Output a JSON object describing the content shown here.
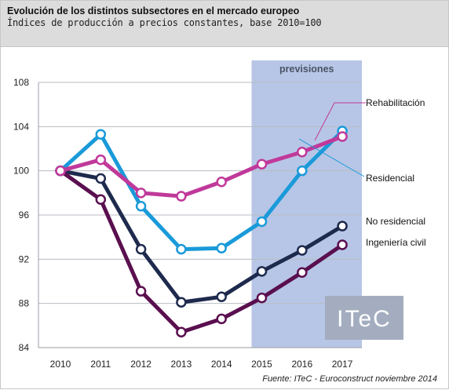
{
  "header": {
    "title": "Evolución de los distintos subsectores en el mercado europeo",
    "subtitle": "Índices de producción a precios constantes, base 2010=100"
  },
  "source": "Fuente: ITeC - Euroconstruct noviembre 2014",
  "logo_text": "ITeC",
  "forecast_label": "previsiones",
  "chart_data": {
    "type": "line",
    "categories": [
      "2010",
      "2011",
      "2012",
      "2013",
      "2014",
      "2015",
      "2016",
      "2017"
    ],
    "ylim": [
      84,
      108
    ],
    "yticks": [
      84,
      88,
      92,
      96,
      100,
      104,
      108
    ],
    "grid": "horizontal",
    "forecast_region": [
      "2015",
      "2017"
    ],
    "series": [
      {
        "name": "Rehabilitación",
        "color": "#c0399a",
        "values": [
          100,
          101.0,
          98.0,
          97.7,
          99.0,
          100.6,
          101.7,
          103.1
        ]
      },
      {
        "name": "Residencial",
        "color": "#1a9ad9",
        "values": [
          100,
          103.3,
          96.8,
          92.9,
          93.0,
          95.4,
          100.0,
          103.6
        ]
      },
      {
        "name": "No residencial",
        "color": "#1e2a4d",
        "values": [
          100,
          99.3,
          92.9,
          88.1,
          88.6,
          90.9,
          92.8,
          95.0
        ]
      },
      {
        "name": "Ingeniería civil",
        "color": "#5a0f4f",
        "values": [
          100,
          97.4,
          89.1,
          85.4,
          86.6,
          88.5,
          90.8,
          93.3
        ]
      }
    ]
  }
}
